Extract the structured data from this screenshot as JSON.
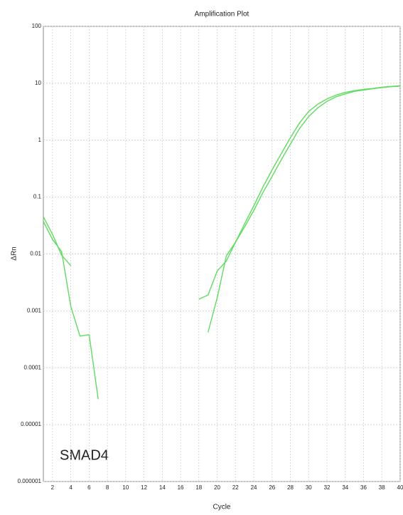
{
  "chart_data": {
    "type": "line",
    "title": "Amplification Plot",
    "xlabel": "Cycle",
    "ylabel": "ΔRn",
    "annotation": "SMAD4",
    "x": [
      1,
      2,
      3,
      4,
      5,
      6,
      7,
      8,
      9,
      10,
      11,
      12,
      13,
      14,
      15,
      16,
      17,
      18,
      19,
      20,
      21,
      22,
      23,
      24,
      25,
      26,
      27,
      28,
      29,
      30,
      31,
      32,
      33,
      34,
      35,
      36,
      37,
      38,
      39,
      40
    ],
    "series": [
      {
        "color": "#5fdc5f",
        "values": [
          0.045,
          0.022,
          0.0095,
          0.0062,
          null,
          null,
          null,
          null,
          null,
          null,
          null,
          null,
          null,
          null,
          null,
          null,
          null,
          0.0016,
          0.0019,
          0.005,
          0.0075,
          0.016,
          0.034,
          0.07,
          0.15,
          0.3,
          0.58,
          1.1,
          2.0,
          3.2,
          4.3,
          5.3,
          6.2,
          6.9,
          7.4,
          7.8,
          8.1,
          8.5,
          8.8,
          9.0
        ]
      },
      {
        "color": "#5fdc5f",
        "values": [
          0.037,
          0.018,
          0.011,
          0.0012,
          0.00036,
          0.00038,
          2.8e-05,
          null,
          null,
          null,
          null,
          null,
          null,
          null,
          null,
          null,
          null,
          null,
          0.00042,
          0.0017,
          0.0092,
          0.016,
          0.03,
          0.058,
          0.12,
          0.23,
          0.45,
          0.85,
          1.6,
          2.6,
          3.7,
          4.8,
          5.8,
          6.5,
          7.2,
          7.6,
          8.0,
          8.4,
          8.7,
          8.9
        ]
      }
    ],
    "xlim": [
      1,
      40
    ],
    "xticks": [
      2,
      4,
      6,
      8,
      10,
      12,
      14,
      16,
      18,
      20,
      22,
      24,
      26,
      28,
      30,
      32,
      34,
      36,
      38,
      40
    ],
    "ylim": [
      1e-06,
      100
    ],
    "yticks": [
      100,
      10,
      1,
      0.1,
      0.01,
      0.001,
      0.0001,
      1e-05,
      1e-06
    ],
    "ylog": true,
    "grid": true
  }
}
